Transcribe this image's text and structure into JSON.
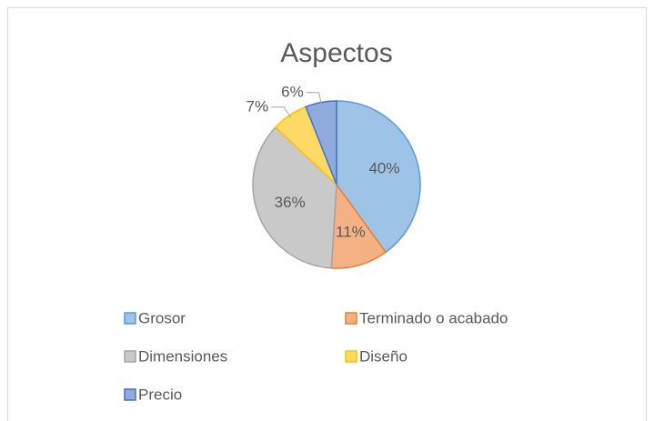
{
  "chart_data": {
    "type": "pie",
    "title": "Aspectos",
    "categories": [
      "Grosor",
      "Terminado o acabado",
      "Dimensiones",
      "Diseño",
      "Precio"
    ],
    "values": [
      40,
      11,
      36,
      7,
      6
    ],
    "value_labels": [
      "40%",
      "11%",
      "36%",
      "7%",
      "6%"
    ],
    "colors": [
      "#9dc3e6",
      "#f4b183",
      "#c9c9c9",
      "#ffd966",
      "#8faadc"
    ],
    "edge_colors": [
      "#5b9bd5",
      "#ed7d31",
      "#a5a5a5",
      "#ffc000",
      "#4472c4"
    ],
    "legend": "bottom"
  }
}
